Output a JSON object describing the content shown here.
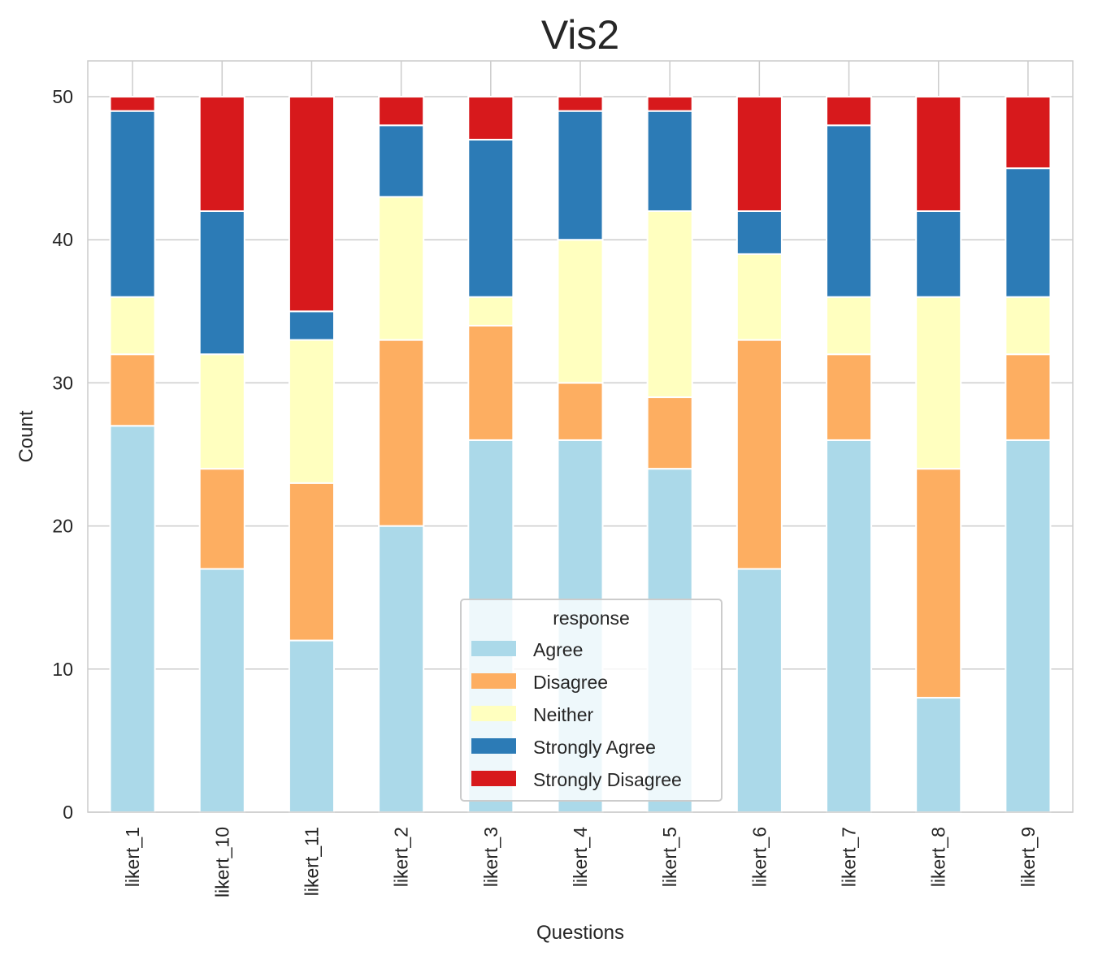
{
  "chart_data": {
    "type": "bar",
    "stacked": true,
    "title": "Vis2",
    "xlabel": "Questions",
    "ylabel": "Count",
    "ylim": [
      0,
      52.5
    ],
    "yticks": [
      0,
      10,
      20,
      30,
      40,
      50
    ],
    "grid": true,
    "legend_title": "response",
    "legend_position": "lower-center",
    "categories": [
      "likert_1",
      "likert_10",
      "likert_11",
      "likert_2",
      "likert_3",
      "likert_4",
      "likert_5",
      "likert_6",
      "likert_7",
      "likert_8",
      "likert_9"
    ],
    "series": [
      {
        "name": "Agree",
        "color": "#abd9e9",
        "values": [
          27,
          17,
          12,
          20,
          26,
          26,
          24,
          17,
          26,
          8,
          26
        ]
      },
      {
        "name": "Disagree",
        "color": "#fdae61",
        "values": [
          5,
          7,
          11,
          13,
          8,
          4,
          5,
          16,
          6,
          16,
          6
        ]
      },
      {
        "name": "Neither",
        "color": "#ffffbf",
        "values": [
          4,
          8,
          10,
          10,
          2,
          10,
          13,
          6,
          4,
          12,
          4
        ]
      },
      {
        "name": "Strongly Agree",
        "color": "#2c7bb6",
        "values": [
          13,
          10,
          2,
          5,
          11,
          9,
          7,
          3,
          12,
          6,
          9
        ]
      },
      {
        "name": "Strongly Disagree",
        "color": "#d7191c",
        "values": [
          1,
          8,
          15,
          2,
          3,
          1,
          1,
          8,
          2,
          8,
          5
        ]
      }
    ]
  }
}
